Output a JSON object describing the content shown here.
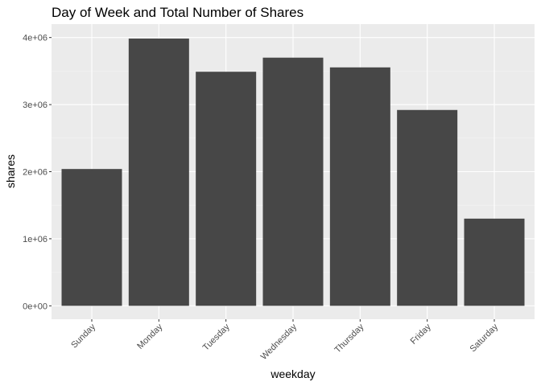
{
  "chart_data": {
    "type": "bar",
    "title": "Day of Week and Total Number of Shares",
    "xlabel": "weekday",
    "ylabel": "shares",
    "categories": [
      "Sunday",
      "Monday",
      "Tuesday",
      "Wednesday",
      "Thursday",
      "Friday",
      "Saturday"
    ],
    "values": [
      2040000,
      3985000,
      3490000,
      3700000,
      3555000,
      2920000,
      1300000
    ],
    "ylim": [
      -200000,
      4200000
    ],
    "yticks": [
      0,
      1000000,
      2000000,
      3000000,
      4000000
    ],
    "ytick_labels": [
      "0e+00",
      "1e+06",
      "2e+06",
      "3e+06",
      "4e+06"
    ],
    "grid": true,
    "colors": {
      "panel_background": "#ebebeb",
      "grid_major": "#ffffff",
      "grid_minor": "#f5f5f5",
      "bar_fill": "#474747",
      "tick_color": "#333333",
      "tick_label_color": "#4d4d4d"
    }
  }
}
